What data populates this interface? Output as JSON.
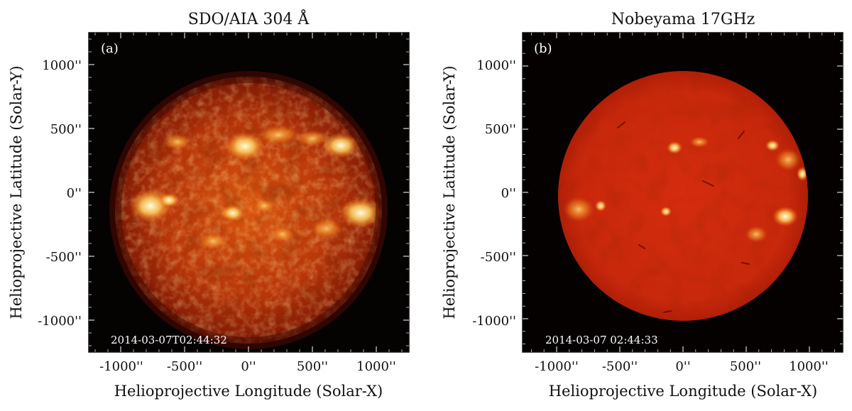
{
  "panels": [
    {
      "title": "SDO/AIA  304  Å",
      "label": "(a)",
      "timestamp": "2014-03-07T02:44:32",
      "x_label": "Helioprojective  Longitude  (Solar-X)",
      "y_label": "Helioprojective  Latitude  (Solar-Y)",
      "x_ticks": [
        "-1000''",
        "-500''",
        "0''",
        "500''",
        "1000''"
      ],
      "y_ticks": [
        "1000''",
        "500''",
        "0''",
        "-500''",
        "-1000''"
      ],
      "colors": {
        "disk_center": "#e86a10",
        "disk_mid": "#b8320a",
        "disk_edge": "#6b1204",
        "bright": "#ffe8b0",
        "background": "#050202"
      }
    },
    {
      "title": "Nobeyama  17GHz",
      "label": "(b)",
      "timestamp": "2014-03-07  02:44:33",
      "x_label": "Helioprojective  Longitude  (Solar-X)",
      "y_label": "Helioprojective  Latitude  (Solar-Y)",
      "x_ticks": [
        "-1000''",
        "-500''",
        "0''",
        "500''",
        "1000''"
      ],
      "y_ticks": [
        "1000''",
        "500''",
        "0''",
        "-500''",
        "-1000''"
      ],
      "colors": {
        "disk_center": "#d83010",
        "disk_mid": "#c42a0c",
        "disk_edge": "#b02008",
        "bright": "#fff3a0",
        "background": "#050101"
      }
    }
  ]
}
